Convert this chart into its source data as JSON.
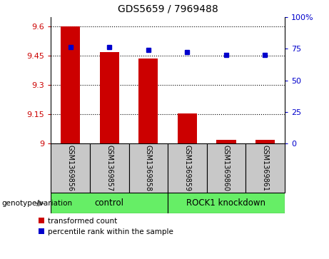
{
  "title": "GDS5659 / 7969488",
  "samples": [
    "GSM1369856",
    "GSM1369857",
    "GSM1369858",
    "GSM1369859",
    "GSM1369860",
    "GSM1369861"
  ],
  "red_values": [
    9.6,
    9.47,
    9.435,
    9.155,
    9.02,
    9.02
  ],
  "blue_values_pct": [
    76,
    76,
    74,
    72,
    70,
    70
  ],
  "ylim_left": [
    9.0,
    9.65
  ],
  "ylim_right": [
    0,
    100
  ],
  "yticks_left": [
    9.0,
    9.15,
    9.3,
    9.45,
    9.6
  ],
  "yticks_right": [
    0,
    25,
    50,
    75,
    100
  ],
  "ytick_labels_left": [
    "9",
    "9.15",
    "9.3",
    "9.45",
    "9.6"
  ],
  "ytick_labels_right": [
    "0",
    "25",
    "50",
    "75",
    "100%"
  ],
  "red_color": "#cc0000",
  "blue_color": "#0000cc",
  "bar_width": 0.5,
  "control_color": "#66ee66",
  "sample_bg_color": "#c8c8c8",
  "legend_red_label": "transformed count",
  "legend_blue_label": "percentile rank within the sample",
  "genotype_label": "genotype/variation"
}
